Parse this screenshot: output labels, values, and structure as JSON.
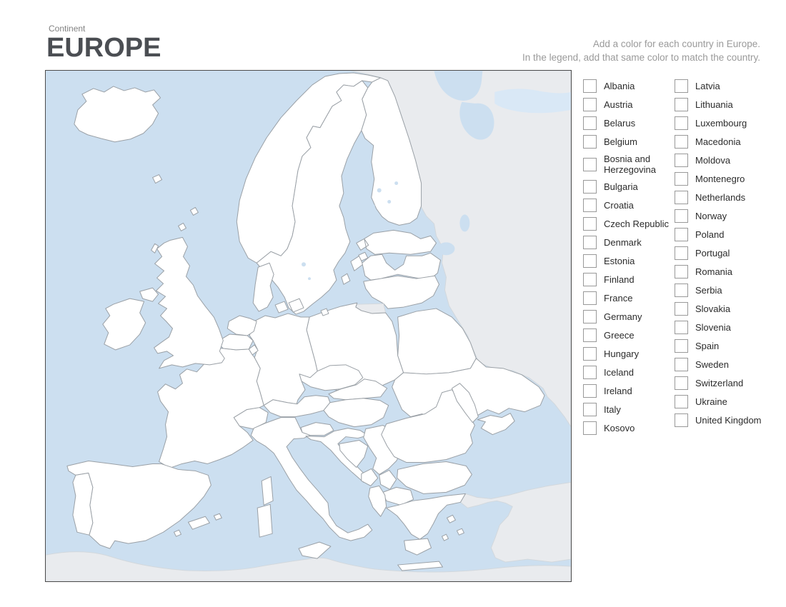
{
  "header": {
    "kicker": "Continent",
    "title": "EUROPE"
  },
  "instructions": {
    "line1": "Add a color for each country in Europe.",
    "line2": "In the legend, add that same color to match the country."
  },
  "legend": {
    "column1": [
      "Albania",
      "Austria",
      "Belarus",
      "Belgium",
      "Bosnia and Herzegovina",
      "Bulgaria",
      "Croatia",
      "Czech Republic",
      "Denmark",
      "Estonia",
      "Finland",
      "France",
      "Germany",
      "Greece",
      "Hungary",
      "Iceland",
      "Ireland",
      "Italy",
      "Kosovo"
    ],
    "column2": [
      "Latvia",
      "Lithuania",
      "Luxembourg",
      "Macedonia",
      "Moldova",
      "Montenegro",
      "Netherlands",
      "Norway",
      "Poland",
      "Portugal",
      "Romania",
      "Serbia",
      "Slovakia",
      "Slovenia",
      "Spain",
      "Sweden",
      "Switzerland",
      "Ukraine",
      "United Kingdom"
    ]
  },
  "map": {
    "colors": {
      "sea": "#ccdff0",
      "country_fill": "#ffffff",
      "country_border": "#9aa0a6",
      "non_european_land": "#e9ebee",
      "frame_border": "#4c4c4c"
    },
    "non_european_regions": [
      "Russia",
      "Turkey",
      "North Africa",
      "Kaliningrad"
    ]
  }
}
